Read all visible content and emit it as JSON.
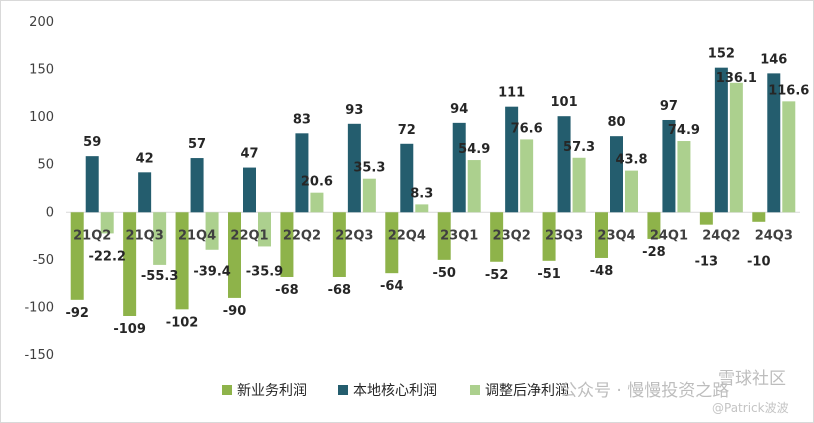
{
  "chart_data": {
    "type": "bar",
    "categories": [
      "21Q2",
      "21Q3",
      "21Q4",
      "22Q1",
      "22Q2",
      "22Q3",
      "22Q4",
      "23Q1",
      "23Q2",
      "23Q3",
      "23Q4",
      "24Q1",
      "24Q2",
      "24Q3"
    ],
    "series": [
      {
        "name": "新业务利润",
        "color": "#8eb34a",
        "values": [
          -92,
          -109,
          -102,
          -90,
          -68,
          -68,
          -64,
          -50,
          -52,
          -51,
          -48,
          -28,
          -13,
          -10
        ]
      },
      {
        "name": "本地核心利润",
        "color": "#245d6e",
        "values": [
          59,
          42,
          57,
          47,
          83,
          93,
          72,
          94,
          111,
          101,
          80,
          97,
          152,
          146
        ]
      },
      {
        "name": "调整后净利润",
        "color": "#acd08e",
        "values": [
          -22.2,
          -55.3,
          -39.4,
          -35.9,
          20.6,
          35.3,
          8.3,
          54.9,
          76.6,
          57.3,
          43.8,
          74.9,
          136.1,
          116.6
        ]
      }
    ],
    "value_labels": [
      [
        "-92",
        "-109",
        "-102",
        "-90",
        "-68",
        "-68",
        "-64",
        "-50",
        "-52",
        "-51",
        "-48",
        "-28",
        "-13",
        "-10"
      ],
      [
        "59",
        "42",
        "57",
        "47",
        "83",
        "93",
        "72",
        "94",
        "111",
        "101",
        "80",
        "97",
        "152",
        "146"
      ],
      [
        "-22.2",
        "-55.3",
        "-39.4",
        "-35.9",
        "20.6",
        "35.3",
        "8.3",
        "54.9",
        "76.6",
        "57.3",
        "43.8",
        "74.9",
        "136.1",
        "116.6"
      ]
    ],
    "ylim": [
      -150,
      200
    ],
    "yticks": [
      -150,
      -100,
      -50,
      0,
      50,
      100,
      150,
      200
    ],
    "ytick_labels": [
      "-150",
      "-100",
      "-50",
      "0",
      "50",
      "100",
      "150",
      "200"
    ],
    "grid": false,
    "legend_position": "bottom",
    "title": "",
    "xlabel": "",
    "ylabel": ""
  },
  "watermark": {
    "line1": "公众号 · 慢慢投资之路",
    "line2": "@Patrick波波",
    "line3": "雪球社区"
  }
}
